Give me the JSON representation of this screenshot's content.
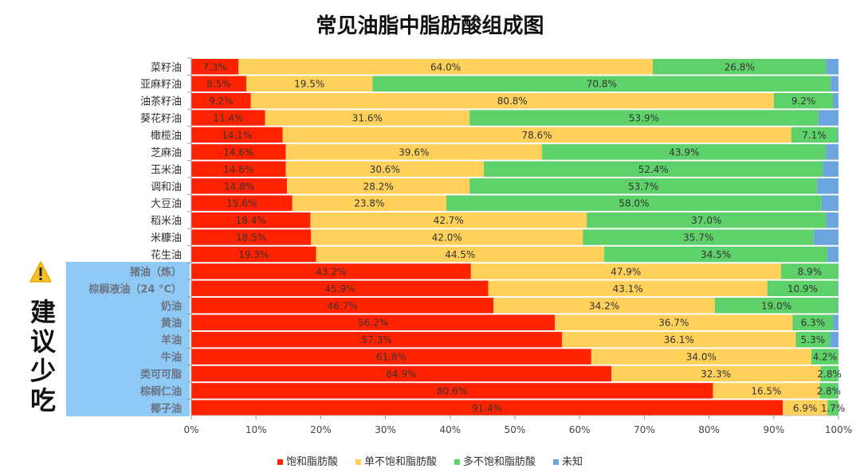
{
  "title": "常见油脂中脂肪酸组成图",
  "advice": "建议少吃",
  "colors": {
    "sat": "#ff2200",
    "mono": "#ffd05a",
    "poly": "#5fd16a",
    "unknown": "#6aa5e0",
    "highlight": "#8ecaf5"
  },
  "chart_data": {
    "type": "bar",
    "orientation": "horizontal",
    "stacked": true,
    "title": "常见油脂中脂肪酸组成图",
    "xlim": [
      0,
      100
    ],
    "x_ticks": [
      "0%",
      "10%",
      "20%",
      "30%",
      "40%",
      "50%",
      "60%",
      "70%",
      "80%",
      "90%",
      "100%"
    ],
    "legend_position": "bottom",
    "categories": [
      "菜籽油",
      "亚麻籽油",
      "油茶籽油",
      "葵花籽油",
      "橄榄油",
      "芝麻油",
      "玉米油",
      "调和油",
      "大豆油",
      "稻米油",
      "米糠油",
      "花生油",
      "猪油（炼）",
      "棕榈液油（24 °C）",
      "奶油",
      "黄油",
      "羊油",
      "牛油",
      "类可可脂",
      "棕榈仁油",
      "椰子油"
    ],
    "highlighted_categories": [
      "猪油（炼）",
      "棕榈液油（24 °C）",
      "奶油",
      "黄油",
      "羊油",
      "牛油",
      "类可可脂",
      "棕榈仁油",
      "椰子油"
    ],
    "series": [
      {
        "name": "饱和脂肪酸",
        "values": [
          7.3,
          8.5,
          9.2,
          11.4,
          14.1,
          14.6,
          14.6,
          14.8,
          15.6,
          18.4,
          18.5,
          19.3,
          43.2,
          45.9,
          46.7,
          56.2,
          57.3,
          61.8,
          64.9,
          80.6,
          91.4
        ]
      },
      {
        "name": "单不饱和脂肪酸",
        "values": [
          64.0,
          19.5,
          80.8,
          31.6,
          78.6,
          39.6,
          30.6,
          28.2,
          23.8,
          42.7,
          42.0,
          44.5,
          47.9,
          43.1,
          34.2,
          36.7,
          36.1,
          34.0,
          32.3,
          16.5,
          6.9
        ]
      },
      {
        "name": "多不饱和脂肪酸",
        "values": [
          26.8,
          70.8,
          9.2,
          53.9,
          7.1,
          43.9,
          52.4,
          53.7,
          58.0,
          37.0,
          35.7,
          34.5,
          8.9,
          10.9,
          19.0,
          6.3,
          5.3,
          4.2,
          2.8,
          2.8,
          1.7
        ]
      },
      {
        "name": "未知"
      }
    ],
    "data_labels": [
      [
        "7.3%",
        "64.0%",
        "26.8%"
      ],
      [
        "8.5%",
        "19.5%",
        "70.8%"
      ],
      [
        "9.2%",
        "80.8%",
        "9.2%"
      ],
      [
        "11.4%",
        "31.6%",
        "53.9%"
      ],
      [
        "14.1%",
        "78.6%",
        "7.1%"
      ],
      [
        "14.6%",
        "39.6%",
        "43.9%"
      ],
      [
        "14.6%",
        "30.6%",
        "52.4%"
      ],
      [
        "14.8%",
        "28.2%",
        "53.7%"
      ],
      [
        "15.6%",
        "23.8%",
        "58.0%"
      ],
      [
        "18.4%",
        "42.7%",
        "37.0%"
      ],
      [
        "18.5%",
        "42.0%",
        "35.7%"
      ],
      [
        "19.3%",
        "44.5%",
        "34.5%"
      ],
      [
        "43.2%",
        "47.9%",
        "8.9%"
      ],
      [
        "45.9%",
        "43.1%",
        "10.9%"
      ],
      [
        "46.7%",
        "34.2%",
        "19.0%"
      ],
      [
        "56.2%",
        "36.7%",
        "6.3%"
      ],
      [
        "57.3%",
        "36.1%",
        "5.3%"
      ],
      [
        "61.8%",
        "34.0%",
        "4.2%"
      ],
      [
        "64.9%",
        "32.3%",
        "2.8%"
      ],
      [
        "80.6%",
        "16.5%",
        "2.8%"
      ],
      [
        "91.4%",
        "6.9%",
        "1.7%"
      ]
    ]
  }
}
